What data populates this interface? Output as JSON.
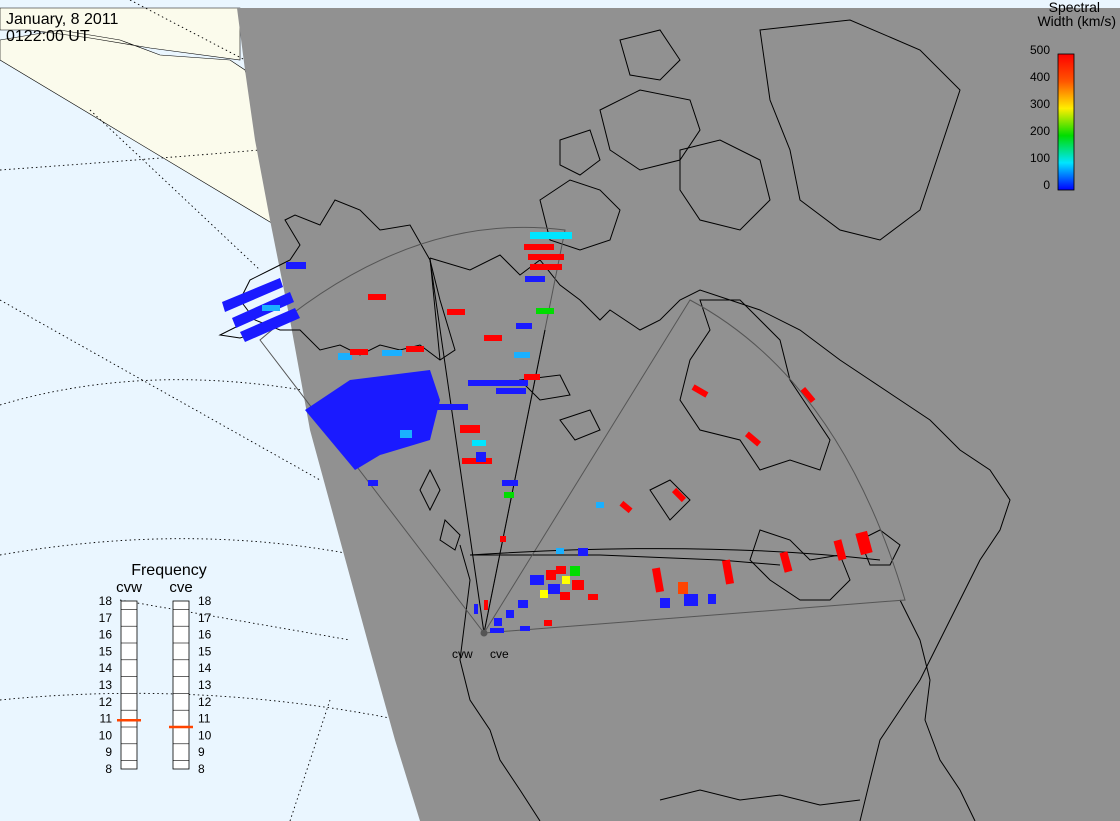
{
  "header": {
    "date": "January, 8 2011",
    "time": "0122:00 UT"
  },
  "colorbar": {
    "title_line1": "Spectral",
    "title_line2": "Width (km/s)",
    "ticks": [
      "500",
      "400",
      "300",
      "200",
      "100",
      "0"
    ],
    "colors": [
      "#ff0000",
      "#ff8800",
      "#ffff00",
      "#00dd00",
      "#00e5ff",
      "#0000ff"
    ]
  },
  "frequency_panel": {
    "title": "Frequency",
    "columns": [
      {
        "label": "cvw",
        "value": 10.9
      },
      {
        "label": "cve",
        "value": 10.5
      }
    ],
    "scale": [
      "18",
      "17",
      "16",
      "15",
      "14",
      "13",
      "12",
      "11",
      "10",
      "9",
      "8"
    ],
    "marker_color": "#ff4400"
  },
  "radars": [
    {
      "label": "cvw"
    },
    {
      "label": "cve"
    }
  ],
  "colors": {
    "ocean_lit": "#eaf6ff",
    "land_lit": "#fbfbec",
    "night": "#919191",
    "coast": "#000000",
    "fov": "#555555"
  }
}
